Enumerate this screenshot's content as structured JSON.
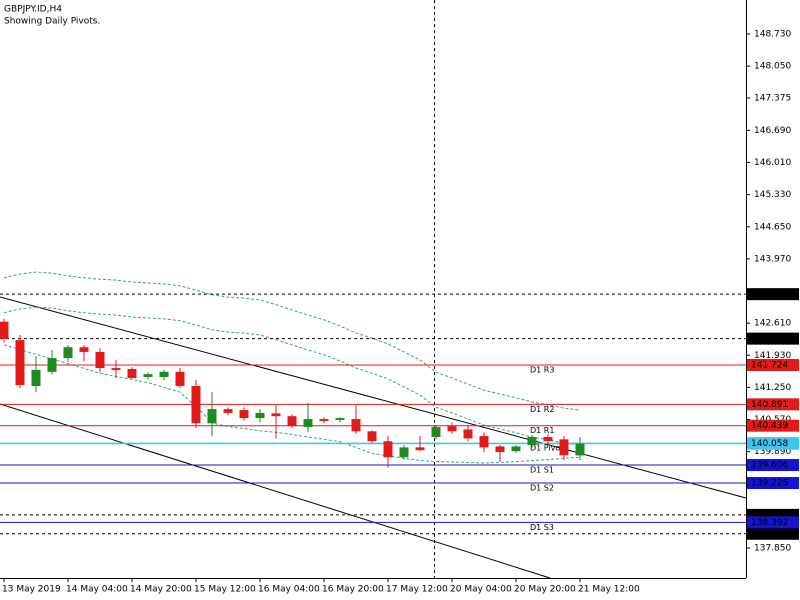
{
  "chart_data": {
    "type": "candlestick",
    "title": "GBPJPY.ID,H4",
    "subtitle": "Showing Daily Pivots.",
    "categories": [
      "13 May 2019",
      null,
      null,
      null,
      "14 May 04:00",
      null,
      null,
      null,
      "14 May 20:00",
      null,
      null,
      null,
      "15 May 12:00",
      null,
      null,
      null,
      "16 May 04:00",
      null,
      null,
      null,
      "16 May 20:00",
      null,
      null,
      null,
      "17 May 12:00",
      null,
      null,
      null,
      "20 May 04:00",
      null,
      null,
      null,
      "20 May 20:00",
      null,
      null,
      null,
      "21 May 12:00"
    ],
    "open": [
      142.64,
      142.25,
      141.28,
      141.58,
      141.87,
      142.1,
      142.0,
      141.66,
      141.64,
      141.47,
      141.47,
      141.58,
      141.28,
      140.49,
      140.79,
      140.77,
      140.6,
      140.7,
      140.64,
      140.41,
      140.58,
      140.56,
      140.58,
      140.32,
      140.11,
      139.77,
      139.98,
      140.2,
      140.43,
      140.36,
      140.22,
      140.0,
      139.9,
      140.03,
      140.2,
      140.15,
      139.81
    ],
    "high": [
      142.7,
      142.36,
      141.91,
      142.04,
      142.15,
      142.15,
      142.08,
      141.83,
      141.68,
      141.57,
      141.62,
      141.66,
      141.41,
      141.15,
      140.83,
      140.83,
      140.79,
      140.87,
      140.68,
      140.92,
      140.62,
      140.62,
      140.87,
      140.34,
      140.22,
      140.03,
      140.22,
      140.45,
      140.51,
      140.45,
      140.3,
      140.03,
      140.03,
      140.24,
      140.26,
      140.22,
      140.2
    ],
    "low": [
      142.2,
      141.24,
      141.15,
      141.53,
      141.79,
      141.8,
      141.57,
      141.45,
      141.43,
      141.42,
      141.4,
      141.24,
      140.39,
      140.22,
      140.66,
      140.55,
      140.51,
      140.17,
      140.39,
      140.3,
      140.49,
      140.51,
      140.26,
      140.07,
      139.55,
      139.72,
      139.9,
      140.15,
      140.26,
      140.11,
      139.88,
      139.67,
      139.86,
      139.98,
      140.03,
      139.71,
      139.71
    ],
    "close": [
      142.28,
      141.3,
      141.62,
      141.87,
      142.1,
      142.0,
      141.66,
      141.62,
      141.45,
      141.53,
      141.58,
      141.28,
      140.49,
      140.79,
      140.71,
      140.6,
      140.71,
      140.64,
      140.43,
      140.58,
      140.54,
      140.6,
      140.32,
      140.11,
      139.77,
      139.98,
      139.92,
      140.41,
      140.32,
      140.17,
      139.98,
      139.88,
      140.0,
      140.2,
      140.11,
      139.81,
      140.06
    ],
    "up_color": "#1f8a1f",
    "down_color": "#e31a1a",
    "lines": [
      {
        "color": "#3a9e96",
        "values": [
          143.57,
          143.65,
          143.69,
          143.67,
          143.61,
          143.57,
          143.54,
          143.52,
          143.48,
          143.46,
          143.44,
          143.4,
          143.31,
          143.21,
          143.16,
          143.14,
          143.1,
          143.0,
          142.89,
          142.78,
          142.68,
          142.55,
          142.4,
          142.29,
          142.17,
          142.0,
          141.83,
          141.57,
          141.45,
          141.32,
          141.19,
          141.11,
          141.03,
          140.94,
          140.88,
          140.81,
          140.77
        ]
      },
      {
        "color": "#3a9e96",
        "values": [
          142.83,
          142.91,
          142.95,
          142.93,
          142.87,
          142.83,
          142.8,
          142.78,
          142.74,
          142.72,
          142.7,
          142.66,
          142.57,
          142.47,
          142.42,
          142.4,
          142.36,
          142.26,
          142.15,
          142.04,
          141.94,
          141.81,
          141.66,
          141.55,
          141.43,
          141.26,
          141.09,
          140.83,
          140.71,
          140.58,
          140.45,
          140.37,
          140.29,
          140.2,
          140.14,
          140.07,
          140.03
        ]
      },
      {
        "color": "#3a9e96",
        "values": [
          142.15,
          142.05,
          141.95,
          141.85,
          141.75,
          141.65,
          141.55,
          141.48,
          141.42,
          141.35,
          141.25,
          141.15,
          140.85,
          140.5,
          140.42,
          140.38,
          140.33,
          140.3,
          140.25,
          140.2,
          140.15,
          140.1,
          139.98,
          139.85,
          139.8,
          139.75,
          139.7,
          139.68,
          139.67,
          139.66,
          139.65,
          139.66,
          139.68,
          139.7,
          139.72,
          139.75,
          139.77
        ]
      }
    ],
    "levels": [
      {
        "name": "D1 R3",
        "value": 141.724,
        "color": "#e31a1a"
      },
      {
        "name": "D1 R2",
        "value": 140.891,
        "color": "#e31a1a"
      },
      {
        "name": "D1 R1",
        "value": 140.439,
        "color": "#e31a1a"
      },
      {
        "name": "D1 Pivot",
        "value": 140.07,
        "color": "#3ec4ef"
      },
      {
        "name": "D1 S1",
        "value": 139.606,
        "color": "#1414d2"
      },
      {
        "name": "D1 S2",
        "value": 139.225,
        "color": "#1414d2"
      },
      {
        "name": "D1 S3",
        "value": 138.392,
        "color": "#1414d2"
      }
    ],
    "hlines": [
      143.223,
      142.282,
      138.551,
      138.151
    ],
    "price": {
      "value": 140.058,
      "color": "#3ec4ef"
    },
    "ylim": [
      137.215,
      149.45
    ],
    "yticks": [
      {
        "value": 148.73,
        "label": "148.730"
      },
      {
        "value": 148.05,
        "label": "148.050"
      },
      147.375,
      {
        "value": 146.69,
        "label": "146.690"
      },
      {
        "value": 146.01,
        "label": "146.010"
      },
      {
        "value": 145.33,
        "label": "145.330"
      },
      {
        "value": 144.65,
        "label": "144.650"
      },
      {
        "value": 143.97,
        "label": "143.970"
      },
      {
        "value": 142.61,
        "label": "142.610"
      },
      {
        "value": 141.93,
        "label": "141.930"
      },
      {
        "value": 141.25,
        "label": "141.250"
      },
      {
        "value": 140.57,
        "label": "140.570"
      },
      {
        "value": 139.89,
        "label": "139.890"
      },
      {
        "value": 137.85,
        "label": "137.850"
      }
    ]
  }
}
